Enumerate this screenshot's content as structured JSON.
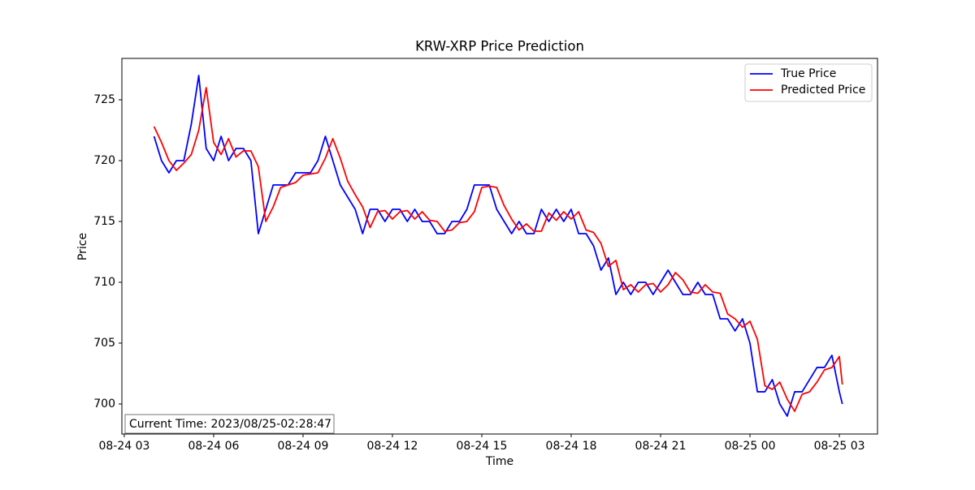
{
  "chart_data": {
    "type": "line",
    "title": "KRW-XRP Price Prediction",
    "x_label": "Time",
    "y_label": "Price",
    "annotation": "Current Time: 2023/08/25-02:28:47",
    "legend": "upper right",
    "x": [
      4,
      4.25,
      4.5,
      4.75,
      5,
      5.25,
      5.5,
      5.75,
      6,
      6.25,
      6.5,
      6.75,
      7,
      7.25,
      7.5,
      7.75,
      8,
      8.25,
      8.5,
      8.75,
      9,
      9.25,
      9.5,
      9.75,
      10,
      10.25,
      10.5,
      10.75,
      11,
      11.25,
      11.5,
      11.75,
      12,
      12.25,
      12.5,
      12.75,
      13,
      13.25,
      13.5,
      13.75,
      14,
      14.25,
      14.5,
      14.75,
      15,
      15.25,
      15.5,
      15.75,
      16,
      16.25,
      16.5,
      16.75,
      17,
      17.25,
      17.5,
      17.75,
      18,
      18.25,
      18.5,
      18.75,
      19,
      19.25,
      19.5,
      19.75,
      20,
      20.25,
      20.5,
      20.75,
      21,
      21.25,
      21.5,
      21.75,
      22,
      22.25,
      22.5,
      22.75,
      23,
      23.25,
      23.5,
      23.75,
      24,
      24.25,
      24.5,
      24.75,
      25,
      25.25,
      25.5,
      25.75,
      26,
      26.25,
      26.5,
      26.75,
      27,
      27.1
    ],
    "series": [
      {
        "name": "True Price",
        "color": "#0000ff",
        "values": [
          722,
          720,
          719,
          720,
          720,
          723,
          727,
          721,
          720,
          722,
          720,
          721,
          721,
          720,
          714,
          716,
          718,
          718,
          718,
          719,
          719,
          719,
          720,
          722,
          720,
          718,
          717,
          716,
          714,
          716,
          716,
          715,
          716,
          716,
          715,
          716,
          715,
          715,
          714,
          714,
          715,
          715,
          716,
          718,
          718,
          718,
          716,
          715,
          714,
          715,
          714,
          714,
          716,
          715,
          716,
          715,
          716,
          714,
          714,
          713,
          711,
          712,
          709,
          710,
          709,
          710,
          710,
          709,
          710,
          711,
          710,
          709,
          709,
          710,
          709,
          709,
          707,
          707,
          706,
          707,
          705,
          701,
          701,
          702,
          700,
          699,
          701,
          701,
          702,
          703,
          703,
          704,
          701,
          700
        ]
      },
      {
        "name": "Predicted Price",
        "color": "#ff0000",
        "values": [
          722.8,
          721.5,
          720,
          719.2,
          719.8,
          720.5,
          722.5,
          726,
          721.5,
          720.5,
          721.8,
          720.3,
          720.8,
          720.8,
          719.5,
          715,
          716.2,
          717.8,
          718,
          718.2,
          718.8,
          718.9,
          719,
          720.2,
          721.8,
          720.2,
          718.3,
          717.2,
          716.2,
          714.5,
          715.8,
          715.9,
          715.2,
          715.8,
          715.9,
          715.2,
          715.8,
          715.1,
          715,
          714.2,
          714.3,
          714.9,
          715,
          715.8,
          717.8,
          717.9,
          717.8,
          716.3,
          715.2,
          714.3,
          714.8,
          714.2,
          714.2,
          715.7,
          715.1,
          715.8,
          715.2,
          715.8,
          714.3,
          714.1,
          713.2,
          711.3,
          711.8,
          709.4,
          709.8,
          709.2,
          709.8,
          709.9,
          709.2,
          709.8,
          710.8,
          710.2,
          709.2,
          709.1,
          709.8,
          709.2,
          709.1,
          707.4,
          707,
          706.3,
          706.8,
          705.3,
          701.5,
          701.2,
          701.8,
          700.4,
          699.4,
          700.8,
          701,
          701.8,
          702.8,
          703,
          703.9,
          701.6
        ]
      }
    ],
    "xlim": [
      2.92,
      28.28
    ],
    "xticks": [
      {
        "value": 3,
        "label": "08-24 03"
      },
      {
        "value": 6,
        "label": "08-24 06"
      },
      {
        "value": 9,
        "label": "08-24 09"
      },
      {
        "value": 12,
        "label": "08-24 12"
      },
      {
        "value": 15,
        "label": "08-24 15"
      },
      {
        "value": 18,
        "label": "08-24 18"
      },
      {
        "value": 21,
        "label": "08-24 21"
      },
      {
        "value": 24,
        "label": "08-25 00"
      },
      {
        "value": 27,
        "label": "08-25 03"
      }
    ],
    "ylim": [
      697.53,
      728.4
    ],
    "yticks": [
      700,
      705,
      710,
      715,
      720,
      725
    ],
    "grid": false
  }
}
